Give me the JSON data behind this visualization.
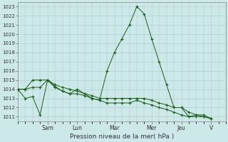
{
  "title": "",
  "xlabel": "Pression niveau de la mer( hPa )",
  "background_color": "#cce8e8",
  "grid_color": "#aacccc",
  "line_color": "#1a5c1a",
  "ylim": [
    1010.5,
    1023.5
  ],
  "yticks": [
    1011,
    1012,
    1013,
    1014,
    1015,
    1016,
    1017,
    1018,
    1019,
    1020,
    1021,
    1022,
    1023
  ],
  "xlim": [
    0,
    28
  ],
  "x_day_labels": [
    "Sam",
    "Lun",
    "Mar",
    "Mer",
    "Jeu",
    "V"
  ],
  "x_day_positions": [
    4,
    8,
    13,
    18,
    22,
    26
  ],
  "series1_x": [
    0,
    1,
    2,
    3,
    4,
    5,
    6,
    7,
    8,
    9,
    10,
    11,
    12,
    13,
    14,
    15,
    16,
    17,
    18,
    19,
    20,
    21,
    22,
    23,
    24,
    25,
    26
  ],
  "series1_y": [
    1014.0,
    1013.0,
    1013.2,
    1011.2,
    1015.0,
    1014.2,
    1013.8,
    1013.5,
    1014.0,
    1013.5,
    1013.0,
    1012.8,
    1016.0,
    1018.0,
    1019.5,
    1021.0,
    1023.0,
    1022.2,
    1019.5,
    1017.0,
    1014.5,
    1012.0,
    1012.0,
    1011.0,
    1011.2,
    1011.2,
    1010.8
  ],
  "series2_x": [
    0,
    1,
    2,
    3,
    4,
    5,
    6,
    7,
    8,
    9,
    10,
    11,
    12,
    13,
    14,
    15,
    16,
    17,
    18,
    19,
    20,
    21,
    22,
    23,
    24,
    25,
    26
  ],
  "series2_y": [
    1014.0,
    1014.0,
    1015.0,
    1015.0,
    1015.0,
    1014.5,
    1014.2,
    1014.0,
    1013.8,
    1013.5,
    1013.3,
    1013.0,
    1013.0,
    1013.0,
    1013.0,
    1013.0,
    1013.0,
    1013.0,
    1012.8,
    1012.5,
    1012.3,
    1012.0,
    1012.0,
    1011.5,
    1011.2,
    1011.0,
    1010.8
  ],
  "series3_x": [
    0,
    1,
    2,
    3,
    4,
    5,
    6,
    7,
    8,
    9,
    10,
    11,
    12,
    13,
    14,
    15,
    16,
    17,
    18,
    19,
    20,
    21,
    22,
    23,
    24,
    25,
    26
  ],
  "series3_y": [
    1014.0,
    1014.0,
    1014.2,
    1014.2,
    1015.0,
    1014.3,
    1013.8,
    1013.5,
    1013.5,
    1013.3,
    1013.0,
    1012.8,
    1012.5,
    1012.5,
    1012.5,
    1012.5,
    1012.8,
    1012.5,
    1012.3,
    1012.0,
    1011.8,
    1011.5,
    1011.2,
    1011.0,
    1011.0,
    1011.0,
    1010.8
  ]
}
